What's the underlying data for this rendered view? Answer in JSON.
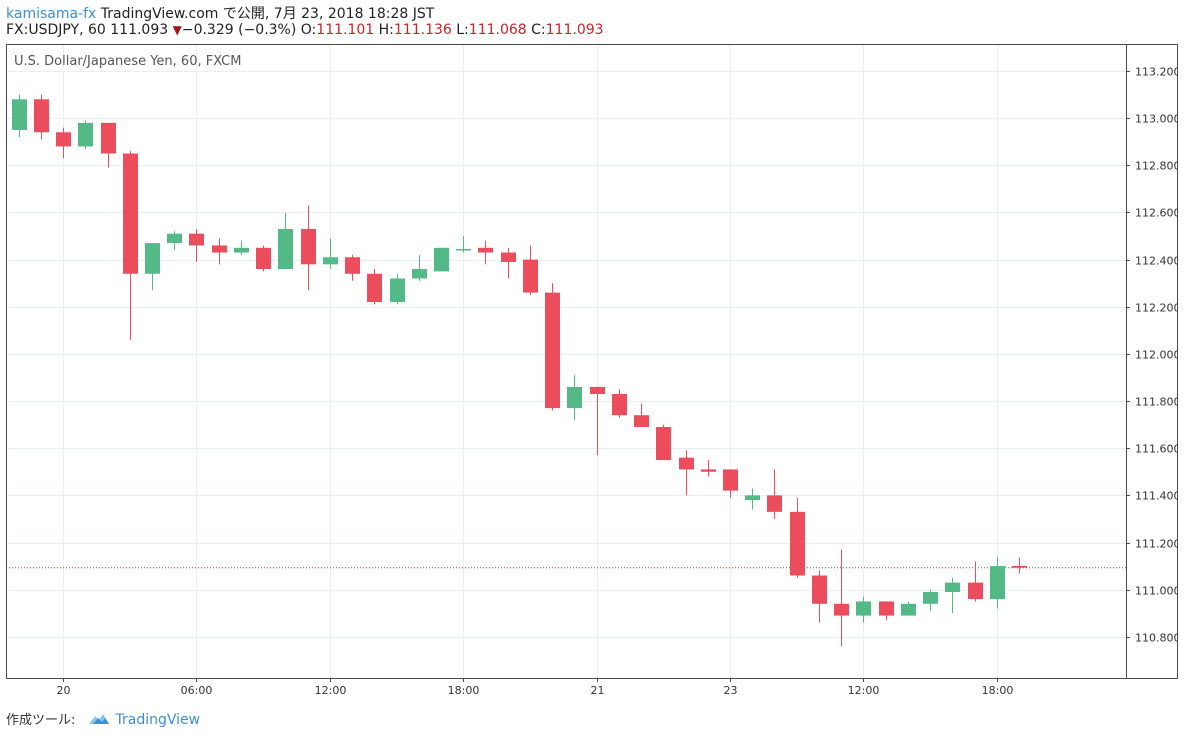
{
  "header": {
    "author": "kamisama-fx",
    "publish_text": "TradingView.com で公開, 7月 23, 2018 18:28 JST",
    "symbol_text": "FX:USDJPY, 60 111.093",
    "change_arrow": "▼",
    "change_text": "−0.329 (−0.3%)",
    "open_label": "O:",
    "open_value": "111.101",
    "high_label": "H:",
    "high_value": "111.136",
    "low_label": "L:",
    "low_value": "111.068",
    "close_label": "C:",
    "close_value": "111.093"
  },
  "footer": {
    "created_with": "作成ツール:",
    "brand": "TradingView"
  },
  "colors": {
    "up": "#53b987",
    "down": "#eb4d5c",
    "grid": "#e9eef2",
    "price_line": "#c0392b",
    "axis_text": "#333333"
  },
  "chart_data": {
    "type": "candlestick",
    "title": "U.S. Dollar/Japanese Yen, 60, FXCM",
    "y_ticks": [
      "113.200",
      "113.000",
      "112.800",
      "112.600",
      "112.400",
      "112.200",
      "112.000",
      "111.800",
      "111.600",
      "111.400",
      "111.200",
      "111.000",
      "110.800"
    ],
    "ylim": [
      110.6,
      113.4
    ],
    "x_ticks": [
      {
        "index": 2.5,
        "label": "20"
      },
      {
        "index": 8.5,
        "label": "06:00"
      },
      {
        "index": 14.5,
        "label": "12:00"
      },
      {
        "index": 20.5,
        "label": "18:00"
      },
      {
        "index": 26.5,
        "label": "21"
      },
      {
        "index": 32.5,
        "label": "23"
      },
      {
        "index": 38.5,
        "label": "12:00"
      },
      {
        "index": 44.5,
        "label": "18:00"
      }
    ],
    "last_price": 111.093,
    "grid": true,
    "candles": [
      {
        "o": 112.95,
        "h": 113.1,
        "l": 112.92,
        "c": 113.08
      },
      {
        "o": 113.08,
        "h": 113.1,
        "l": 112.91,
        "c": 112.94
      },
      {
        "o": 112.94,
        "h": 112.96,
        "l": 112.83,
        "c": 112.88
      },
      {
        "o": 112.88,
        "h": 112.99,
        "l": 112.87,
        "c": 112.98
      },
      {
        "o": 112.98,
        "h": 112.98,
        "l": 112.79,
        "c": 112.85
      },
      {
        "o": 112.85,
        "h": 112.86,
        "l": 112.06,
        "c": 112.34
      },
      {
        "o": 112.34,
        "h": 112.47,
        "l": 112.27,
        "c": 112.47
      },
      {
        "o": 112.47,
        "h": 112.52,
        "l": 112.44,
        "c": 112.51
      },
      {
        "o": 112.51,
        "h": 112.53,
        "l": 112.39,
        "c": 112.46
      },
      {
        "o": 112.46,
        "h": 112.49,
        "l": 112.38,
        "c": 112.43
      },
      {
        "o": 112.43,
        "h": 112.48,
        "l": 112.42,
        "c": 112.45
      },
      {
        "o": 112.45,
        "h": 112.46,
        "l": 112.35,
        "c": 112.36
      },
      {
        "o": 112.36,
        "h": 112.6,
        "l": 112.36,
        "c": 112.53
      },
      {
        "o": 112.53,
        "h": 112.63,
        "l": 112.27,
        "c": 112.38
      },
      {
        "o": 112.38,
        "h": 112.49,
        "l": 112.36,
        "c": 112.41
      },
      {
        "o": 112.41,
        "h": 112.42,
        "l": 112.31,
        "c": 112.34
      },
      {
        "o": 112.34,
        "h": 112.36,
        "l": 112.21,
        "c": 112.22
      },
      {
        "o": 112.22,
        "h": 112.34,
        "l": 112.21,
        "c": 112.32
      },
      {
        "o": 112.32,
        "h": 112.42,
        "l": 112.31,
        "c": 112.36
      },
      {
        "o": 112.35,
        "h": 112.45,
        "l": 112.35,
        "c": 112.45
      },
      {
        "o": 112.445,
        "h": 112.5,
        "l": 112.43,
        "c": 112.445
      },
      {
        "o": 112.45,
        "h": 112.48,
        "l": 112.38,
        "c": 112.43
      },
      {
        "o": 112.43,
        "h": 112.45,
        "l": 112.32,
        "c": 112.39
      },
      {
        "o": 112.4,
        "h": 112.46,
        "l": 112.25,
        "c": 112.26
      },
      {
        "o": 112.26,
        "h": 112.3,
        "l": 111.76,
        "c": 111.77
      },
      {
        "o": 111.77,
        "h": 111.91,
        "l": 111.72,
        "c": 111.86
      },
      {
        "o": 111.86,
        "h": 111.86,
        "l": 111.57,
        "c": 111.83
      },
      {
        "o": 111.83,
        "h": 111.85,
        "l": 111.73,
        "c": 111.74
      },
      {
        "o": 111.74,
        "h": 111.79,
        "l": 111.69,
        "c": 111.69
      },
      {
        "o": 111.69,
        "h": 111.7,
        "l": 111.55,
        "c": 111.55
      },
      {
        "o": 111.56,
        "h": 111.59,
        "l": 111.4,
        "c": 111.51
      },
      {
        "o": 111.51,
        "h": 111.55,
        "l": 111.48,
        "c": 111.5
      },
      {
        "o": 111.51,
        "h": 111.51,
        "l": 111.39,
        "c": 111.42
      },
      {
        "o": 111.38,
        "h": 111.43,
        "l": 111.34,
        "c": 111.4
      },
      {
        "o": 111.4,
        "h": 111.51,
        "l": 111.3,
        "c": 111.33
      },
      {
        "o": 111.33,
        "h": 111.39,
        "l": 111.05,
        "c": 111.06
      },
      {
        "o": 111.06,
        "h": 111.08,
        "l": 110.86,
        "c": 110.94
      },
      {
        "o": 110.94,
        "h": 111.17,
        "l": 110.76,
        "c": 110.89
      },
      {
        "o": 110.89,
        "h": 110.97,
        "l": 110.86,
        "c": 110.95
      },
      {
        "o": 110.95,
        "h": 110.95,
        "l": 110.87,
        "c": 110.89
      },
      {
        "o": 110.89,
        "h": 110.95,
        "l": 110.89,
        "c": 110.94
      },
      {
        "o": 110.94,
        "h": 111.0,
        "l": 110.91,
        "c": 110.99
      },
      {
        "o": 110.99,
        "h": 111.05,
        "l": 110.9,
        "c": 111.03
      },
      {
        "o": 111.03,
        "h": 111.12,
        "l": 110.95,
        "c": 110.96
      },
      {
        "o": 110.96,
        "h": 111.14,
        "l": 110.92,
        "c": 111.1
      },
      {
        "o": 111.101,
        "h": 111.136,
        "l": 111.068,
        "c": 111.093
      }
    ]
  }
}
